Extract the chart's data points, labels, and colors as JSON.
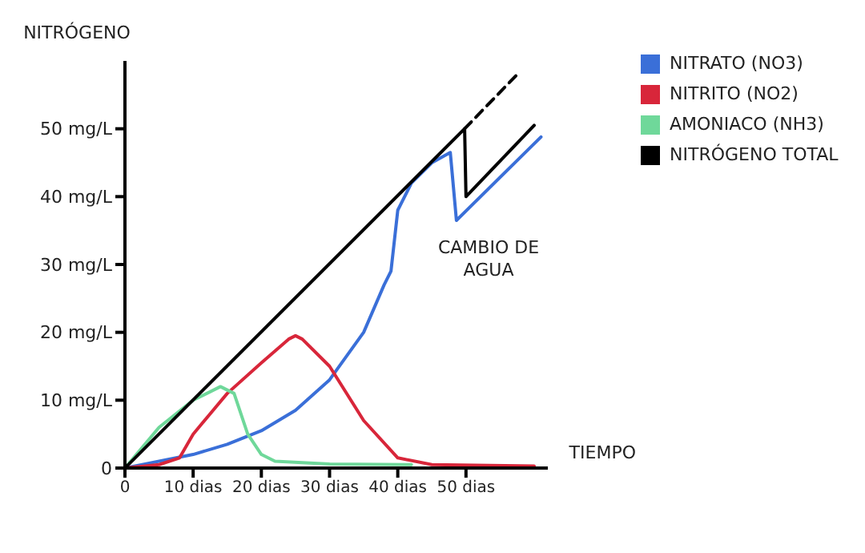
{
  "chart_data": {
    "type": "line",
    "xlabel": "TIEMPO",
    "ylabel": "NITRÓGENO",
    "xlim": [
      0,
      62
    ],
    "ylim": [
      0,
      60
    ],
    "xticks": [
      0,
      {
        "value": 10,
        "label": "10 dias"
      },
      {
        "value": 20,
        "label": "20 dias"
      },
      {
        "value": 30,
        "label": "30 dias"
      },
      {
        "value": 40,
        "label": "40 dias"
      },
      {
        "value": 50,
        "label": "50 dias"
      }
    ],
    "yticks": [
      0,
      {
        "value": 10,
        "label": "10 mg/L"
      },
      {
        "value": 20,
        "label": "20 mg/L"
      },
      {
        "value": 30,
        "label": "30 mg/L"
      },
      {
        "value": 40,
        "label": "40 mg/L"
      },
      {
        "value": 50,
        "label": "50 mg/L"
      }
    ],
    "grid": false,
    "legend": "top right",
    "marker": "none",
    "annotations": [
      "CAMBIO DE AGUA"
    ],
    "series": [
      {
        "name": "NITRATO (NO3)",
        "color": "#3a6fd8",
        "x": [
          0,
          10,
          15,
          20,
          25,
          30,
          35,
          38,
          39,
          40,
          42,
          45,
          47.7,
          48.6,
          61
        ],
        "values": [
          0,
          2,
          3.5,
          5.5,
          8.5,
          13,
          20,
          27,
          29,
          38,
          42,
          45,
          46.5,
          36.5,
          48.8
        ]
      },
      {
        "name": "NITRITO (NO2)",
        "color": "#d8263a",
        "x": [
          0,
          5,
          8,
          10,
          15,
          20,
          24,
          25,
          26,
          30,
          35,
          40,
          45,
          60
        ],
        "values": [
          0,
          0.5,
          1.5,
          5,
          11,
          15.5,
          19,
          19.5,
          19,
          15,
          7,
          1.5,
          0.5,
          0.3
        ]
      },
      {
        "name": "AMONIACO (NH3)",
        "color": "#6fd89a",
        "x": [
          0,
          5,
          10,
          14,
          16,
          18,
          20,
          22,
          30,
          42
        ],
        "values": [
          0,
          6,
          10,
          12,
          11,
          5,
          2,
          1,
          0.6,
          0.5
        ]
      },
      {
        "name": "NITRÓGENO TOTAL",
        "color": "#000000",
        "x": [
          0,
          49.8,
          50,
          60
        ],
        "values": [
          0,
          50,
          40,
          50.5
        ]
      },
      {
        "color": "#000000",
        "line_style": "dashed",
        "x": [
          49.8,
          57.5
        ],
        "values": [
          50,
          58
        ]
      }
    ]
  }
}
